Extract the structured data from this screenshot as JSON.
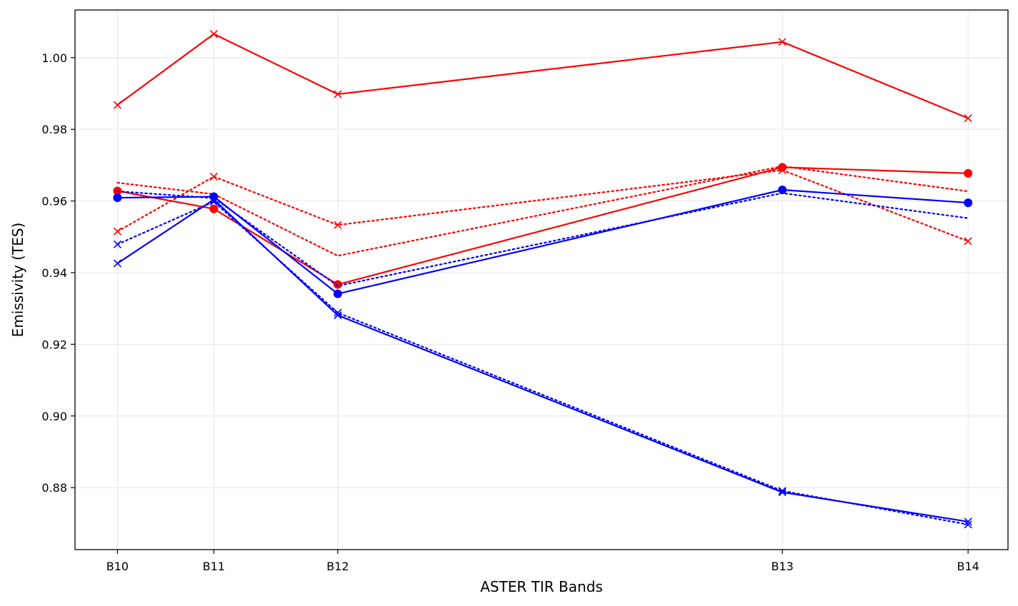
{
  "chart_data": {
    "type": "line",
    "title": "",
    "xlabel": "ASTER TIR Bands",
    "ylabel": "Emissivity (TES)",
    "x_positions": [
      8.291,
      8.634,
      9.075,
      10.657,
      11.318
    ],
    "x_tick_labels": [
      "B10",
      "B11",
      "B12",
      "B13",
      "B14"
    ],
    "xlim": [
      8.14,
      11.46
    ],
    "ylim": [
      0.8627,
      1.0133
    ],
    "y_ticks": [
      0.88,
      0.9,
      0.92,
      0.94,
      0.96,
      0.98,
      1.0
    ],
    "y_tick_labels": [
      "0.88",
      "0.90",
      "0.92",
      "0.94",
      "0.96",
      "0.98",
      "1.00"
    ],
    "grid": true,
    "colors": {
      "red": "#ff0000",
      "blue": "#0000ff",
      "grid": "#e6e6e6",
      "axis": "#000000"
    },
    "series": [
      {
        "color": "#ff0000",
        "linestyle": "solid",
        "marker": "x",
        "values": [
          0.9868,
          1.0066,
          0.9898,
          1.0044,
          0.9831
        ]
      },
      {
        "color": "#ff0000",
        "linestyle": "solid",
        "marker": "o",
        "values": [
          0.9628,
          0.9578,
          0.9367,
          0.9694,
          0.9677
        ]
      },
      {
        "color": "#ff0000",
        "linestyle": "dotted",
        "marker": "x",
        "values": [
          0.9515,
          0.9668,
          0.9533,
          0.9686,
          0.9488
        ]
      },
      {
        "color": "#ff0000",
        "linestyle": "dotted",
        "marker": "none",
        "values": [
          0.9651,
          0.9619,
          0.9447,
          0.9697,
          0.9627
        ]
      },
      {
        "color": "#0000ff",
        "linestyle": "solid",
        "marker": "o",
        "values": [
          0.9609,
          0.9612,
          0.9341,
          0.9631,
          0.9595
        ]
      },
      {
        "color": "#0000ff",
        "linestyle": "dotted",
        "marker": "none",
        "values": [
          0.9627,
          0.9608,
          0.9363,
          0.9622,
          0.9552
        ]
      },
      {
        "color": "#0000ff",
        "linestyle": "solid",
        "marker": "x",
        "values": [
          0.9426,
          0.9604,
          0.9281,
          0.8787,
          0.8705
        ]
      },
      {
        "color": "#0000ff",
        "linestyle": "dotted",
        "marker": "x",
        "values": [
          0.9479,
          0.9598,
          0.9288,
          0.8791,
          0.8697
        ]
      }
    ]
  }
}
